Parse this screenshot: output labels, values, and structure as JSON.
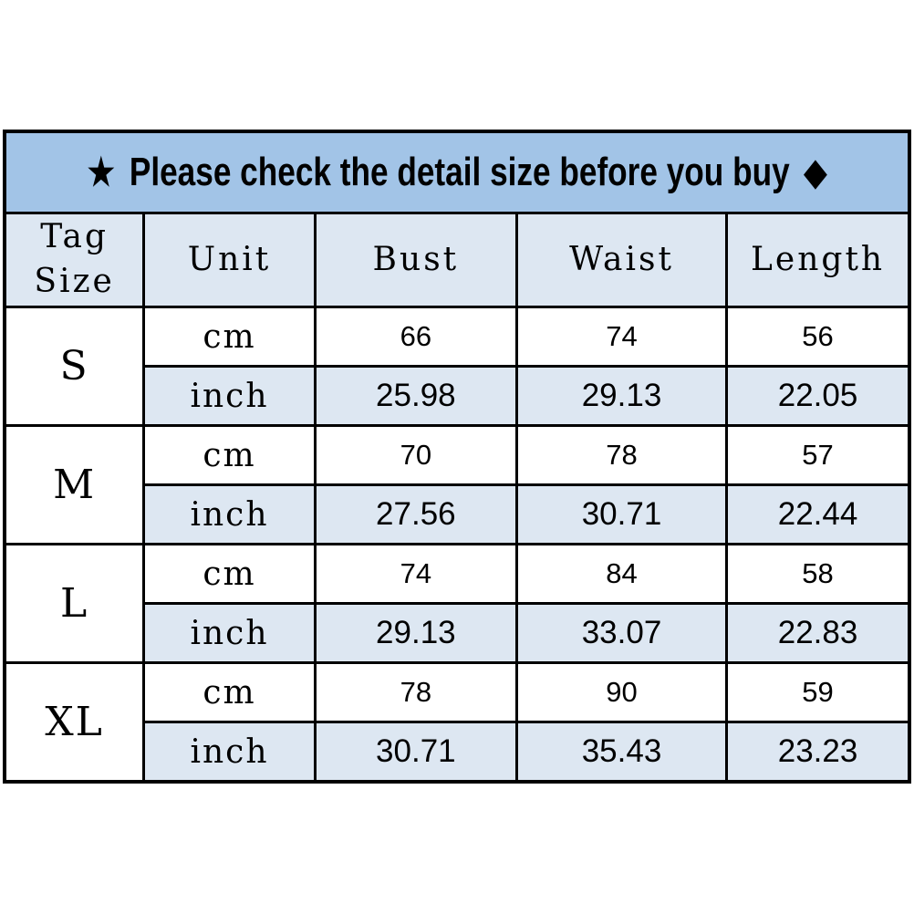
{
  "banner": {
    "star_icon": "★",
    "text": "Please check the detail size before you buy",
    "diamond_icon": "◆"
  },
  "colors": {
    "banner_bg": "#a2c4e7",
    "alt_row_bg": "#dde7f2",
    "border": "#000000",
    "text": "#000000"
  },
  "chart_data": {
    "type": "table",
    "title": "★ Please check the detail size before you buy ◆",
    "columns": [
      "Tag Size",
      "Unit",
      "Bust",
      "Waist",
      "Length"
    ],
    "unit_labels": [
      "cm",
      "inch"
    ],
    "rows": [
      {
        "size": "S",
        "cm": {
          "bust": "66",
          "waist": "74",
          "length": "56"
        },
        "inch": {
          "bust": "25.98",
          "waist": "29.13",
          "length": "22.05"
        }
      },
      {
        "size": "M",
        "cm": {
          "bust": "70",
          "waist": "78",
          "length": "57"
        },
        "inch": {
          "bust": "27.56",
          "waist": "30.71",
          "length": "22.44"
        }
      },
      {
        "size": "L",
        "cm": {
          "bust": "74",
          "waist": "84",
          "length": "58"
        },
        "inch": {
          "bust": "29.13",
          "waist": "33.07",
          "length": "22.83"
        }
      },
      {
        "size": "XL",
        "cm": {
          "bust": "78",
          "waist": "90",
          "length": "59"
        },
        "inch": {
          "bust": "30.71",
          "waist": "35.43",
          "length": "23.23"
        }
      }
    ]
  }
}
